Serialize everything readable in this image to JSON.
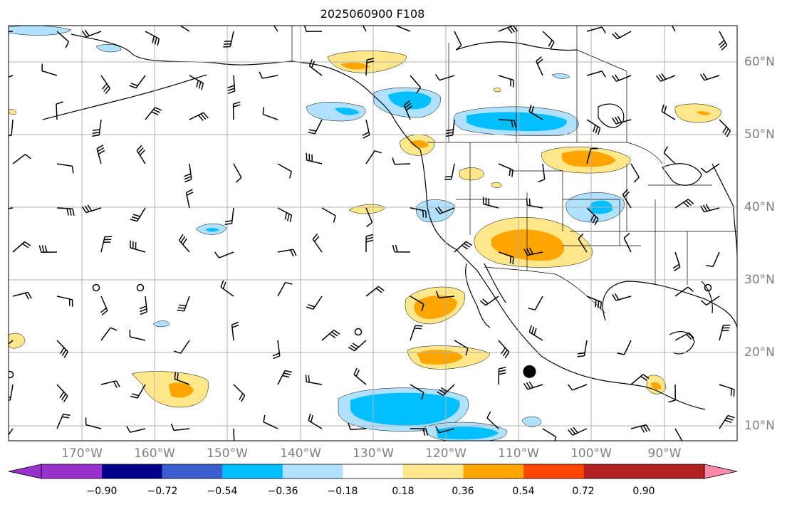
{
  "title": "2025060900 F108",
  "map": {
    "lon_range": [
      -180,
      -80
    ],
    "lat_range": [
      8,
      65
    ],
    "gridlines": true,
    "lon_labels": [
      "170°W",
      "160°W",
      "150°W",
      "140°W",
      "130°W",
      "120°W",
      "110°W",
      "100°W",
      "90°W"
    ],
    "lat_labels": [
      "60°N",
      "50°N",
      "40°N",
      "30°N",
      "20°N",
      "10°N"
    ],
    "features": [
      "coastlines",
      "country-borders",
      "state-borders",
      "wind-barbs",
      "filled-contours"
    ],
    "marker": {
      "name": "black-dot",
      "lon": -108.5,
      "lat": 17.5
    }
  },
  "colorbar": {
    "orientation": "horizontal",
    "extend": "both",
    "ticks": [
      "−0.90",
      "−0.72",
      "−0.54",
      "−0.36",
      "−0.18",
      "0.18",
      "0.36",
      "0.54",
      "0.72",
      "0.90"
    ],
    "colors": [
      "#9932cc",
      "#00008b",
      "#3a5fcd",
      "#00bfff",
      "#b0e2ff",
      "#ffffff",
      "#ffe78a",
      "#ffa500",
      "#ff4500",
      "#b22222",
      "#ff88aa"
    ]
  },
  "colors": {
    "light_blue": "#b0e2ff",
    "blue": "#00bfff",
    "yellow": "#ffe78a",
    "orange": "#ffa500",
    "grid": "#b0b0b0",
    "label_gray": "#7f7f7f"
  }
}
